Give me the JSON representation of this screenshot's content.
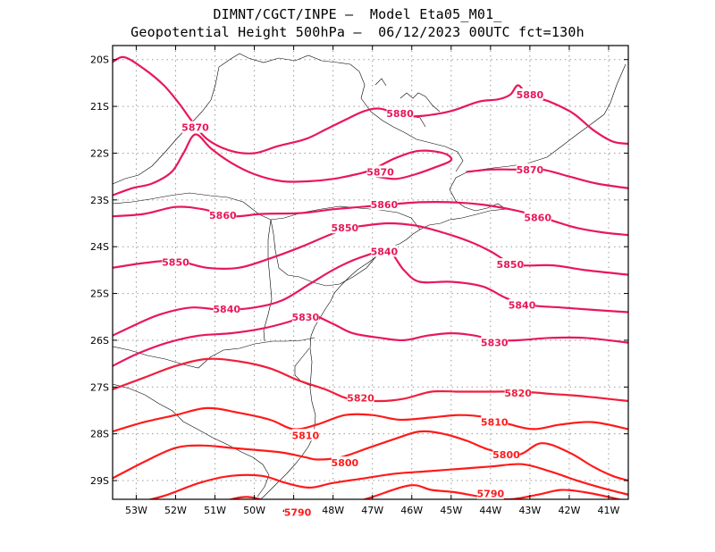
{
  "header": {
    "line1": "DIMNT/CGCT/INPE –  Model Eta05_M01_",
    "line2": "Geopotential Height 500hPa –  06/12/2023 00UTC fct=130h"
  },
  "axes": {
    "lon_ticks": [
      "53W",
      "52W",
      "51W",
      "50W",
      "49W",
      "48W",
      "47W",
      "46W",
      "45W",
      "44W",
      "43W",
      "42W",
      "41W"
    ],
    "lat_ticks": [
      "20S",
      "21S",
      "22S",
      "23S",
      "24S",
      "25S",
      "26S",
      "27S",
      "28S",
      "29S"
    ]
  },
  "contours": [
    {
      "value": 5880,
      "color": "#e8185a",
      "labels": [
        {
          "text": "5880",
          "lon": -46.3,
          "lat": -21.15
        },
        {
          "text": "5880",
          "lon": -43.0,
          "lat": -20.75
        }
      ]
    },
    {
      "value": 5870,
      "color": "#e8185a",
      "labels": [
        {
          "text": "5870",
          "lon": -51.5,
          "lat": -21.45
        },
        {
          "text": "5870",
          "lon": -46.8,
          "lat": -22.4
        },
        {
          "text": "5870",
          "lon": -43.0,
          "lat": -22.35
        }
      ]
    },
    {
      "value": 5860,
      "color": "#e8185a",
      "labels": [
        {
          "text": "5860",
          "lon": -50.8,
          "lat": -23.33
        },
        {
          "text": "5860",
          "lon": -46.7,
          "lat": -23.1
        },
        {
          "text": "5860",
          "lon": -42.8,
          "lat": -23.38
        }
      ]
    },
    {
      "value": 5850,
      "color": "#e8185a",
      "labels": [
        {
          "text": "5850",
          "lon": -52.0,
          "lat": -24.33
        },
        {
          "text": "5850",
          "lon": -47.7,
          "lat": -23.6
        },
        {
          "text": "5850",
          "lon": -43.5,
          "lat": -24.38
        }
      ]
    },
    {
      "value": 5840,
      "color": "#e8185a",
      "labels": [
        {
          "text": "5840",
          "lon": -50.7,
          "lat": -25.33
        },
        {
          "text": "5840",
          "lon": -46.7,
          "lat": -24.1
        },
        {
          "text": "5840",
          "lon": -43.2,
          "lat": -25.25
        }
      ]
    },
    {
      "value": 5830,
      "color": "#e8185a",
      "labels": [
        {
          "text": "5830",
          "lon": -48.7,
          "lat": -25.5
        },
        {
          "text": "5830",
          "lon": -43.9,
          "lat": -26.05
        }
      ]
    },
    {
      "value": 5820,
      "color": "#f01e3c",
      "labels": [
        {
          "text": "5820",
          "lon": -47.3,
          "lat": -27.23
        },
        {
          "text": "5820",
          "lon": -43.3,
          "lat": -27.13
        }
      ]
    },
    {
      "value": 5810,
      "color": "#ff1a1a",
      "labels": [
        {
          "text": "5810",
          "lon": -48.7,
          "lat": -28.03
        },
        {
          "text": "5810",
          "lon": -43.9,
          "lat": -27.75
        }
      ]
    },
    {
      "value": 5800,
      "color": "#ff1a1a",
      "labels": [
        {
          "text": "5800",
          "lon": -47.7,
          "lat": -28.62
        },
        {
          "text": "5800",
          "lon": -43.6,
          "lat": -28.45
        }
      ]
    },
    {
      "value": 5790,
      "color": "#ff1a1a",
      "labels": [
        {
          "text": "5790",
          "lon": -48.9,
          "lat": -29.68
        },
        {
          "text": "5790",
          "lon": -44.0,
          "lat": -29.28
        }
      ]
    }
  ]
}
